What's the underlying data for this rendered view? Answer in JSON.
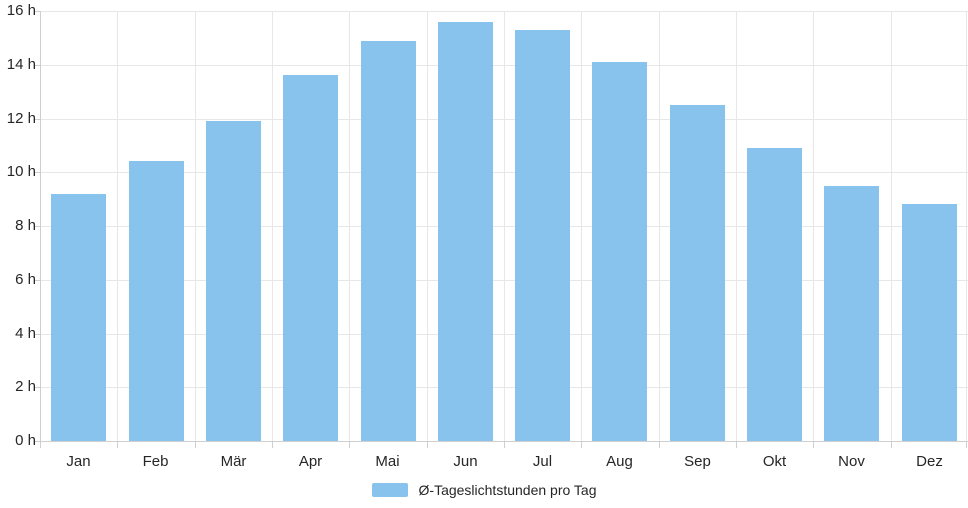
{
  "chart_data": {
    "type": "bar",
    "title": "",
    "xlabel": "",
    "ylabel": "",
    "categories": [
      "Jan",
      "Feb",
      "Mär",
      "Apr",
      "Mai",
      "Jun",
      "Jul",
      "Aug",
      "Sep",
      "Okt",
      "Nov",
      "Dez"
    ],
    "values": [
      9.2,
      10.4,
      11.9,
      13.6,
      14.9,
      15.6,
      15.3,
      14.1,
      12.5,
      10.9,
      9.5,
      8.8
    ],
    "ylim": [
      0,
      16
    ],
    "ytick_step": 2,
    "ytick_suffix": " h",
    "grid": true,
    "legend_position": "bottom",
    "legend_entries": [
      "Ø-Tageslichtstunden pro Tag"
    ]
  },
  "legend": {
    "label": "Ø-Tageslichtstunden pro Tag"
  },
  "colors": {
    "bar": "#87c3ec",
    "grid": "#e7e7e7",
    "axis": "#cfcfcf",
    "text": "#262626",
    "background": "#ffffff"
  }
}
